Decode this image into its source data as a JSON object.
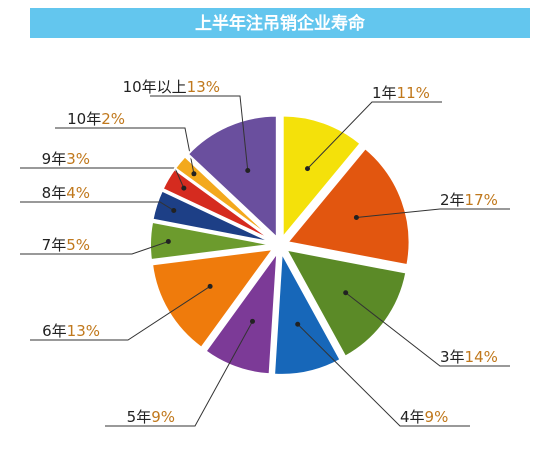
{
  "chart_data": {
    "type": "pie",
    "title": "上半年注吊销企业寿命",
    "categories": [
      "1年",
      "2年",
      "3年",
      "4年",
      "5年",
      "6年",
      "7年",
      "8年",
      "9年",
      "10年",
      "10年以上"
    ],
    "values": [
      11,
      17,
      14,
      9,
      9,
      13,
      5,
      4,
      3,
      2,
      13
    ],
    "value_labels": [
      "11%",
      "17%",
      "14%",
      "9%",
      "9%",
      "13%",
      "5%",
      "4%",
      "3%",
      "2%",
      "13%"
    ],
    "colors": [
      "#f4e10a",
      "#e2560f",
      "#5b8a27",
      "#1767b9",
      "#7c3a97",
      "#ef7b0c",
      "#6c9b2d",
      "#1d3f86",
      "#d52b1f",
      "#f3a91d",
      "#6a4f9e"
    ]
  }
}
